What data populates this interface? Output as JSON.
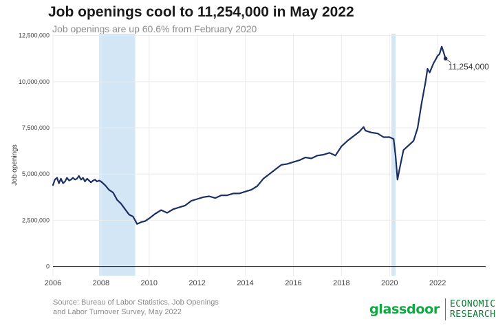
{
  "header": {
    "title": "Job openings cool to 11,254,000 in May 2022",
    "subtitle": "Job openings are up 60.6% from February 2020"
  },
  "footer": {
    "source_line1": "Source: Bureau of Labor Statistics, Job Openings",
    "source_line2": "and Labor Turnover Survey, May 2022",
    "brand_logo": "glassdoor",
    "brand_line1": "ECONOMIC",
    "brand_line2": "RESEARCH"
  },
  "colors": {
    "line": "#1b2f63",
    "recession": "#d2e6f5",
    "grid": "#ebebeb",
    "zero_line": "#333333",
    "brand_green": "#0caa41"
  },
  "chart_data": {
    "type": "line",
    "title": "Job openings cool to 11,254,000 in May 2022",
    "subtitle": "Job openings are up 60.6% from February 2020",
    "xlabel": "",
    "ylabel": "Job openings",
    "xlim": [
      2006.0,
      2024.0
    ],
    "ylim": [
      -500000,
      12600000
    ],
    "x_ticks": [
      2006,
      2008,
      2010,
      2012,
      2014,
      2016,
      2018,
      2020,
      2022
    ],
    "x_tick_labels": [
      "2006",
      "2008",
      "2010",
      "2012",
      "2014",
      "2016",
      "2018",
      "2020",
      "2022"
    ],
    "y_ticks": [
      0,
      2500000,
      5000000,
      7500000,
      10000000,
      12500000
    ],
    "y_tick_labels": [
      "0",
      "2,500,000",
      "5,000,000",
      "7,500,000",
      "10,000,000",
      "12,500,000"
    ],
    "grid": true,
    "recessions": [
      {
        "start": 2007.92,
        "end": 2009.42
      },
      {
        "start": 2020.08,
        "end": 2020.25
      }
    ],
    "annotation": {
      "x": 2022.33,
      "y": 11254000,
      "label": "11,254,000"
    },
    "series": [
      {
        "x": [
          2006.0,
          2006.08,
          2006.17,
          2006.25,
          2006.33,
          2006.42,
          2006.5,
          2006.58,
          2006.67,
          2006.75,
          2006.83,
          2006.92,
          2007.0,
          2007.08,
          2007.17,
          2007.25,
          2007.33,
          2007.42,
          2007.5,
          2007.58,
          2007.67,
          2007.75,
          2007.83,
          2007.92,
          2008.0,
          2008.17,
          2008.33,
          2008.5,
          2008.67,
          2008.83,
          2009.0,
          2009.17,
          2009.33,
          2009.5,
          2009.67,
          2009.83,
          2010.0,
          2010.25,
          2010.5,
          2010.75,
          2011.0,
          2011.25,
          2011.5,
          2011.75,
          2012.0,
          2012.25,
          2012.5,
          2012.75,
          2013.0,
          2013.25,
          2013.5,
          2013.75,
          2014.0,
          2014.25,
          2014.5,
          2014.75,
          2015.0,
          2015.25,
          2015.5,
          2015.75,
          2016.0,
          2016.25,
          2016.5,
          2016.75,
          2017.0,
          2017.25,
          2017.5,
          2017.75,
          2018.0,
          2018.25,
          2018.5,
          2018.75,
          2018.92,
          2019.0,
          2019.25,
          2019.5,
          2019.75,
          2020.0,
          2020.17,
          2020.25,
          2020.33,
          2020.42,
          2020.58,
          2020.75,
          2021.0,
          2021.17,
          2021.33,
          2021.5,
          2021.58,
          2021.67,
          2021.83,
          2021.92,
          2022.0,
          2022.08,
          2022.17,
          2022.25,
          2022.33
        ],
        "values": [
          4400000,
          4700000,
          4800000,
          4500000,
          4750000,
          4500000,
          4600000,
          4800000,
          4650000,
          4700000,
          4800000,
          4700000,
          4750000,
          4900000,
          4700000,
          4800000,
          4600000,
          4750000,
          4650000,
          4550000,
          4650000,
          4700000,
          4600000,
          4650000,
          4600000,
          4400000,
          4150000,
          4000000,
          3600000,
          3400000,
          3100000,
          2800000,
          2700000,
          2300000,
          2400000,
          2450000,
          2600000,
          2850000,
          3050000,
          2900000,
          3100000,
          3200000,
          3300000,
          3550000,
          3650000,
          3750000,
          3800000,
          3700000,
          3850000,
          3850000,
          3950000,
          3950000,
          4050000,
          4150000,
          4350000,
          4750000,
          5000000,
          5250000,
          5500000,
          5550000,
          5650000,
          5750000,
          5900000,
          5850000,
          6000000,
          6050000,
          6150000,
          6000000,
          6500000,
          6800000,
          7050000,
          7300000,
          7550000,
          7350000,
          7250000,
          7200000,
          7000000,
          7000000,
          6900000,
          6000000,
          4700000,
          5300000,
          6300000,
          6500000,
          6800000,
          7500000,
          8800000,
          10000000,
          10700000,
          10500000,
          11000000,
          11200000,
          11400000,
          11500000,
          11900000,
          11600000,
          11254000
        ]
      }
    ]
  }
}
